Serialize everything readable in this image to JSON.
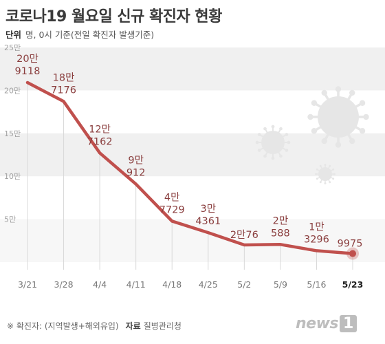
{
  "header": {
    "title": "코로나19 월요일 신규 확진자 현황",
    "unit_label": "단위",
    "unit_text": "명, 0시 기준(전일 확진자 발생기준)"
  },
  "footer": {
    "note": "※ 확진자: (지역발생+해외유입)",
    "source_label": "자료",
    "source_value": "질병관리청"
  },
  "logo": {
    "text": "news",
    "badge": "1"
  },
  "colors": {
    "line": "#c0504d",
    "label": "#8a3e3e",
    "axis_text": "#a0a0a0",
    "band": "#f0f0f0",
    "virus": "#e6e6e6"
  },
  "chart_data": {
    "type": "line",
    "title": "코로나19 월요일 신규 확진자 현황",
    "xlabel": "",
    "ylabel": "",
    "categories": [
      "3/21",
      "3/28",
      "4/4",
      "4/11",
      "4/18",
      "4/25",
      "5/2",
      "5/9",
      "5/16",
      "5/23"
    ],
    "series": [
      {
        "values": [
          209118,
          187176,
          127162,
          90912,
          47729,
          34361,
          20076,
          20588,
          13296,
          9975
        ]
      }
    ],
    "data_labels": [
      [
        "20만",
        "9118"
      ],
      [
        "18만",
        "7176"
      ],
      [
        "12만",
        "7162"
      ],
      [
        "9만",
        "912"
      ],
      [
        "4만",
        "7729"
      ],
      [
        "3만",
        "4361"
      ],
      [
        "2만76"
      ],
      [
        "2만",
        "588"
      ],
      [
        "1만",
        "3296"
      ],
      [
        "9975"
      ]
    ],
    "ytick_labels": [
      "5만",
      "10만",
      "15만",
      "20만",
      "25만"
    ],
    "yticks": [
      50000,
      100000,
      150000,
      200000,
      250000
    ],
    "ylim": [
      0,
      250000
    ],
    "highlight_last": true,
    "grid": true
  }
}
